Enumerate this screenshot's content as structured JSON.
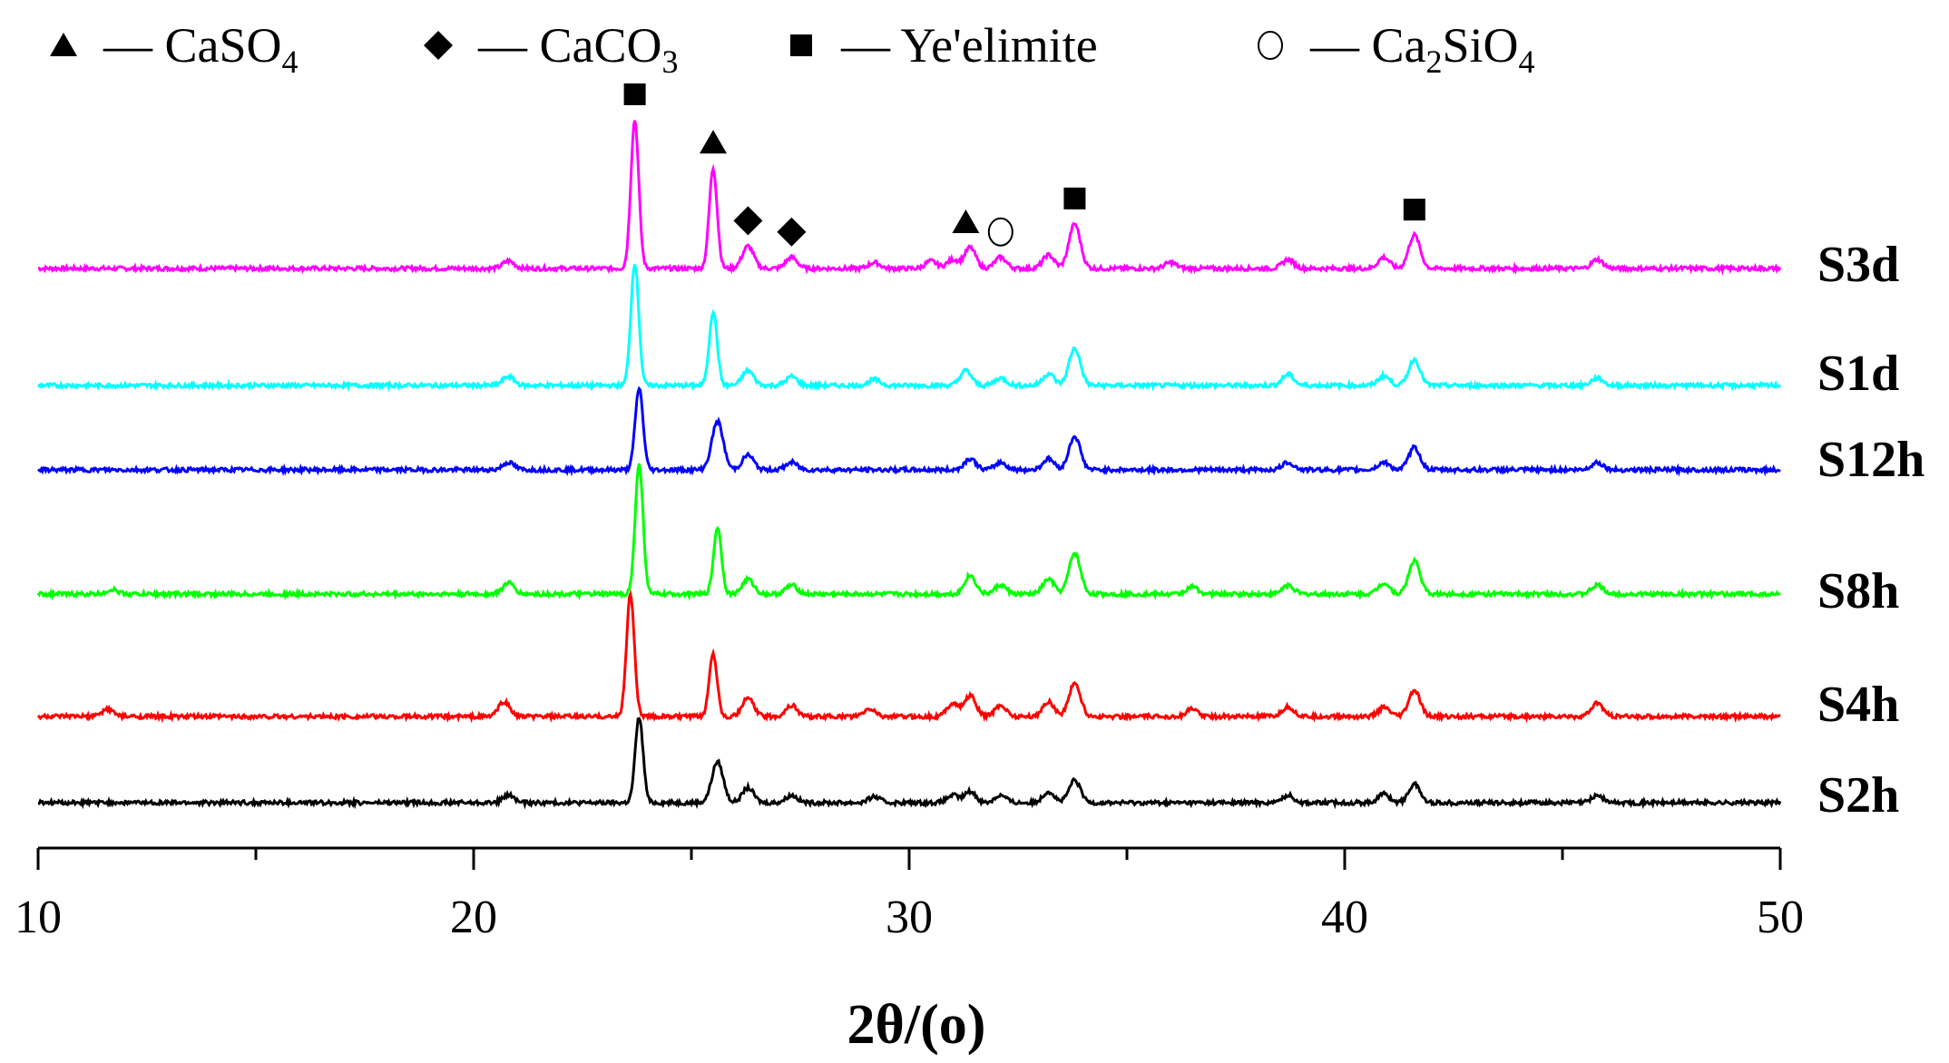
{
  "chart_data": {
    "type": "line",
    "title": "",
    "xlabel": "2θ/(o)",
    "ylabel": "",
    "xlim": [
      10,
      50
    ],
    "xticks": [
      10,
      20,
      30,
      40,
      50
    ],
    "xtick_labels": [
      "10",
      "20",
      "30",
      "40",
      "50"
    ],
    "grid": false,
    "legend_position": "top",
    "legend": [
      {
        "marker": "triangle",
        "text": "— CaSO",
        "sub": "4",
        "tail": ""
      },
      {
        "marker": "diamond",
        "text": "— CaCO",
        "sub": "3",
        "tail": ""
      },
      {
        "marker": "square",
        "text": "— Ye'elimite",
        "sub": "",
        "tail": ""
      },
      {
        "marker": "circle",
        "text": "— Ca",
        "sub": "2",
        "tail": "SiO",
        "sub2": "4"
      }
    ],
    "peak_markers": [
      {
        "marker": "square",
        "x": 23.7,
        "series": "S3d"
      },
      {
        "marker": "triangle",
        "x": 25.5,
        "series": "S3d"
      },
      {
        "marker": "diamond",
        "x": 26.3,
        "series": "S3d"
      },
      {
        "marker": "diamond",
        "x": 27.3,
        "series": "S3d"
      },
      {
        "marker": "triangle",
        "x": 31.3,
        "series": "S3d"
      },
      {
        "marker": "circle",
        "x": 32.1,
        "series": "S3d"
      },
      {
        "marker": "square",
        "x": 33.8,
        "series": "S3d"
      },
      {
        "marker": "square",
        "x": 41.6,
        "series": "S3d"
      }
    ],
    "series": [
      {
        "name": "S3d",
        "color": "#ff00ff",
        "peaks": [
          [
            20.8,
            1.0
          ],
          [
            23.7,
            20.0
          ],
          [
            25.5,
            13.5
          ],
          [
            26.3,
            3.0
          ],
          [
            27.3,
            1.5
          ],
          [
            29.2,
            0.8
          ],
          [
            30.5,
            1.0
          ],
          [
            31.0,
            1.2
          ],
          [
            31.4,
            2.8
          ],
          [
            32.1,
            1.5
          ],
          [
            33.2,
            1.8
          ],
          [
            33.8,
            6.0
          ],
          [
            36.0,
            0.8
          ],
          [
            38.7,
            1.2
          ],
          [
            40.9,
            1.5
          ],
          [
            41.6,
            4.5
          ],
          [
            45.8,
            1.2
          ]
        ]
      },
      {
        "name": "S1d",
        "color": "#00ffff",
        "peaks": [
          [
            20.8,
            1.2
          ],
          [
            23.7,
            16.5
          ],
          [
            25.5,
            10.0
          ],
          [
            26.3,
            2.0
          ],
          [
            27.3,
            1.2
          ],
          [
            29.2,
            0.8
          ],
          [
            31.3,
            2.0
          ],
          [
            32.1,
            1.0
          ],
          [
            33.2,
            1.6
          ],
          [
            33.8,
            5.0
          ],
          [
            38.7,
            1.5
          ],
          [
            40.9,
            1.3
          ],
          [
            41.6,
            3.5
          ],
          [
            45.8,
            1.0
          ]
        ]
      },
      {
        "name": "S12h",
        "color": "#0000ff",
        "peaks": [
          [
            20.8,
            1.0
          ],
          [
            23.8,
            11.0
          ],
          [
            25.6,
            6.5
          ],
          [
            26.3,
            2.0
          ],
          [
            27.3,
            1.0
          ],
          [
            31.4,
            1.5
          ],
          [
            32.1,
            1.0
          ],
          [
            33.2,
            1.5
          ],
          [
            33.8,
            4.5
          ],
          [
            38.7,
            1.0
          ],
          [
            40.9,
            1.0
          ],
          [
            41.6,
            3.0
          ],
          [
            45.8,
            1.0
          ]
        ]
      },
      {
        "name": "S8h",
        "color": "#00ff00",
        "peaks": [
          [
            11.7,
            0.6
          ],
          [
            20.8,
            1.5
          ],
          [
            23.8,
            17.5
          ],
          [
            25.6,
            9.0
          ],
          [
            26.3,
            2.0
          ],
          [
            27.3,
            1.2
          ],
          [
            31.4,
            2.5
          ],
          [
            32.1,
            1.2
          ],
          [
            33.2,
            2.0
          ],
          [
            33.8,
            5.5
          ],
          [
            36.5,
            1.0
          ],
          [
            38.7,
            1.2
          ],
          [
            40.9,
            1.5
          ],
          [
            41.6,
            4.5
          ],
          [
            45.8,
            1.2
          ]
        ]
      },
      {
        "name": "S4h",
        "color": "#ff0000",
        "peaks": [
          [
            11.6,
            1.0
          ],
          [
            20.7,
            2.0
          ],
          [
            23.6,
            16.5
          ],
          [
            25.5,
            8.5
          ],
          [
            26.3,
            2.5
          ],
          [
            27.3,
            1.5
          ],
          [
            29.1,
            1.0
          ],
          [
            31.0,
            1.8
          ],
          [
            31.4,
            2.8
          ],
          [
            32.1,
            1.5
          ],
          [
            33.2,
            2.0
          ],
          [
            33.8,
            4.5
          ],
          [
            36.5,
            1.0
          ],
          [
            38.7,
            1.3
          ],
          [
            40.9,
            1.2
          ],
          [
            41.6,
            3.5
          ],
          [
            45.8,
            1.8
          ]
        ]
      },
      {
        "name": "S2h",
        "color": "#000000",
        "peaks": [
          [
            20.8,
            1.0
          ],
          [
            23.8,
            11.5
          ],
          [
            25.6,
            5.5
          ],
          [
            26.3,
            2.0
          ],
          [
            27.3,
            1.0
          ],
          [
            29.2,
            0.8
          ],
          [
            31.0,
            1.0
          ],
          [
            31.4,
            1.5
          ],
          [
            32.1,
            1.0
          ],
          [
            33.2,
            1.5
          ],
          [
            33.8,
            3.0
          ],
          [
            38.7,
            1.0
          ],
          [
            40.9,
            1.2
          ],
          [
            41.6,
            2.5
          ],
          [
            45.8,
            1.0
          ]
        ]
      }
    ]
  }
}
